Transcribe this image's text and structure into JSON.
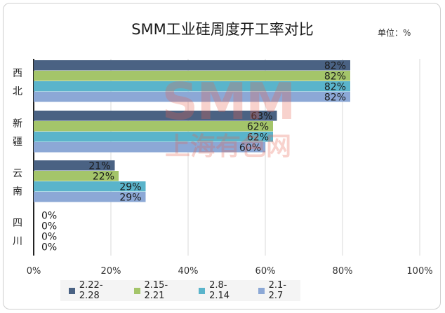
{
  "chart_data": {
    "type": "bar",
    "orientation": "horizontal",
    "title": "SMM工业硅周度开工率对比",
    "unit_label": "单位：%",
    "categories": [
      "西北",
      "新疆",
      "云南",
      "四川"
    ],
    "series": [
      {
        "name": "2.22-2.28",
        "color": "#4a6283",
        "values": [
          82,
          63,
          21,
          0
        ]
      },
      {
        "name": "2.15-2.21",
        "color": "#a4c56a",
        "values": [
          82,
          62,
          22,
          0
        ]
      },
      {
        "name": "2.8-2.14",
        "color": "#5ab4cb",
        "values": [
          82,
          62,
          29,
          0
        ]
      },
      {
        "name": "2.1-2.7",
        "color": "#8ca8d6",
        "values": [
          82,
          60,
          29,
          0
        ]
      }
    ],
    "xlim": [
      0,
      100
    ],
    "x_ticks": [
      0,
      20,
      40,
      60,
      80,
      100
    ],
    "x_tick_labels": [
      "0%",
      "20%",
      "40%",
      "60%",
      "80%",
      "100%"
    ],
    "value_suffix": "%",
    "grid": true,
    "legend_position": "bottom-left"
  },
  "watermark": {
    "top": "SMM",
    "bottom": "上海有色网"
  }
}
